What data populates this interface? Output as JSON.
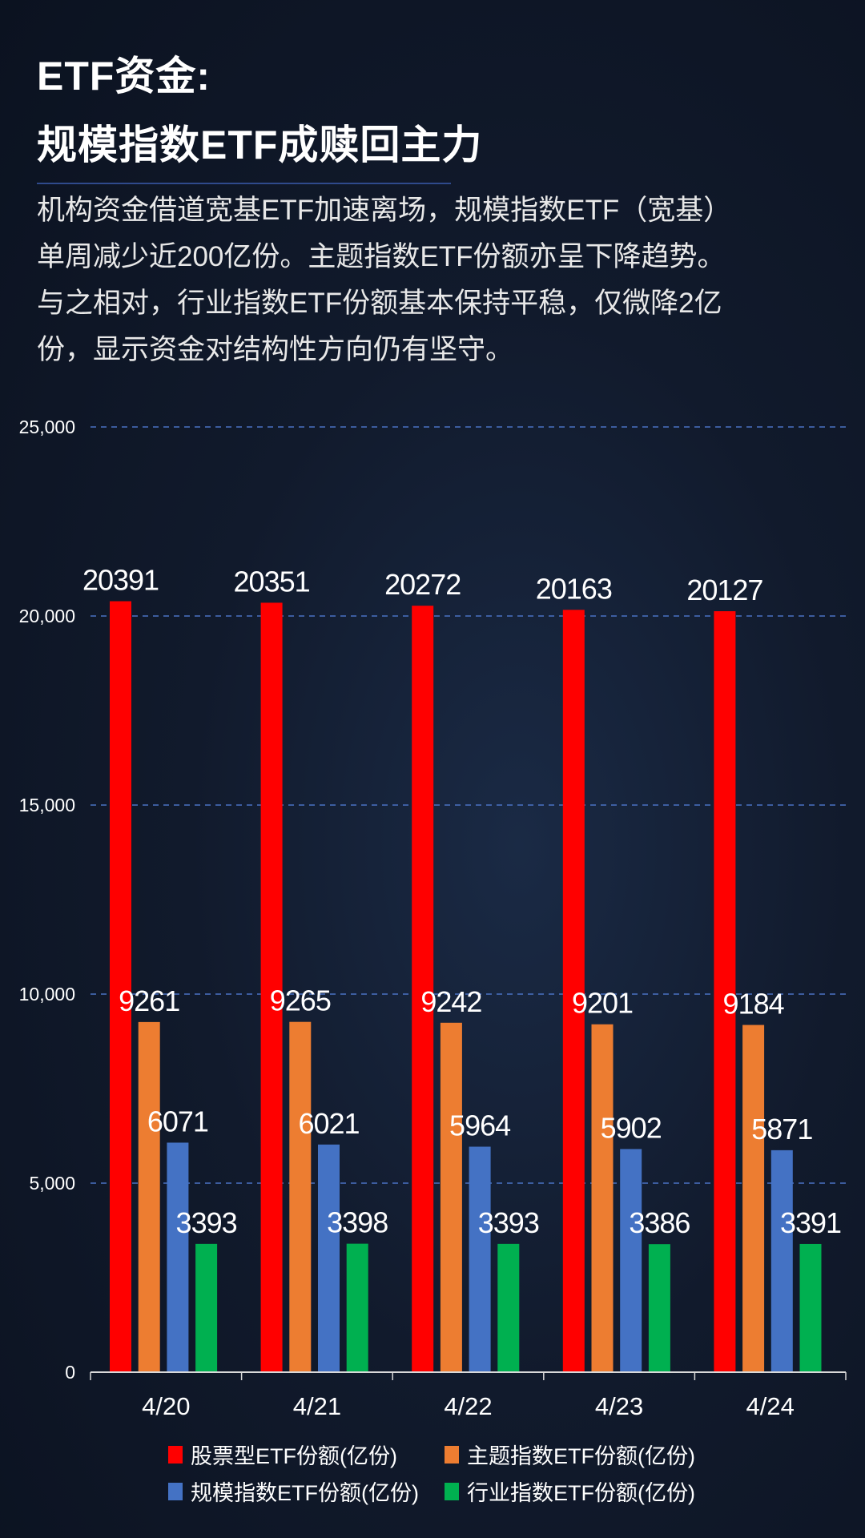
{
  "title": {
    "line1": "ETF资金:",
    "line2": "规模指数ETF成赎回主力"
  },
  "description": [
    "机构资金借道宽基ETF加速离场，规模指数ETF（宽基）",
    "单周减少近200亿份。主题指数ETF份额亦呈下降趋势。",
    "与之相对，行业指数ETF份额基本保持平稳，仅微降2亿",
    "份，显示资金对结构性方向仍有坚守。"
  ],
  "chart_data": {
    "type": "bar",
    "categories": [
      "4/20",
      "4/21",
      "4/22",
      "4/23",
      "4/24"
    ],
    "series": [
      {
        "name": "股票型ETF份额(亿份)",
        "color": "#ff0000",
        "values": [
          20391,
          20351,
          20272,
          20163,
          20127
        ]
      },
      {
        "name": "主题指数ETF份额(亿份)",
        "color": "#ed7d31",
        "values": [
          9261,
          9265,
          9242,
          9201,
          9184
        ]
      },
      {
        "name": "规模指数ETF份额(亿份)",
        "color": "#4472c4",
        "values": [
          6071,
          6021,
          5964,
          5902,
          5871
        ]
      },
      {
        "name": "行业指数ETF份额(亿份)",
        "color": "#00b050",
        "values": [
          3393,
          3398,
          3393,
          3386,
          3391
        ]
      }
    ],
    "yticks": [
      "0",
      "5,000",
      "10,000",
      "15,000",
      "20,000",
      "25,000"
    ],
    "ylim": [
      0,
      25000
    ],
    "grid": true,
    "grid_color": "#4a72c4",
    "legend_position": "bottom"
  }
}
